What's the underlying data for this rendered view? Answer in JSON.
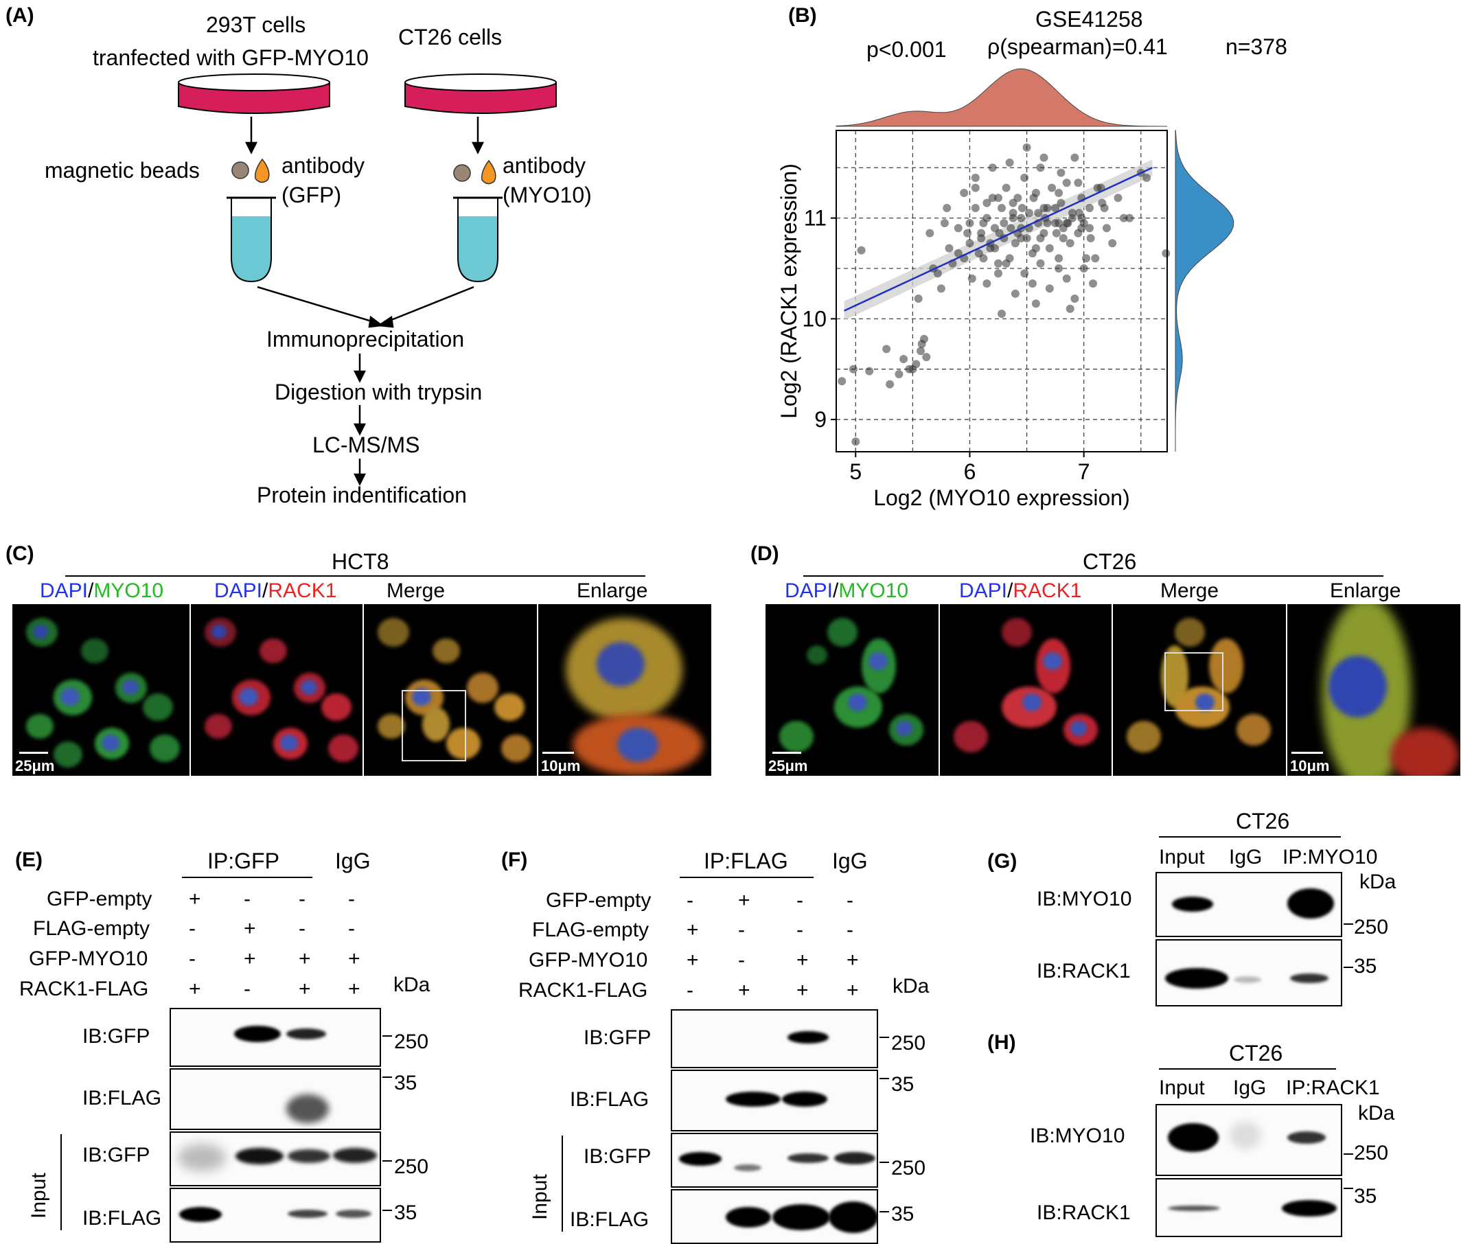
{
  "panelA": {
    "label": "(A)",
    "left_title_1": "293T cells",
    "left_title_2": "tranfected with GFP-MYO10",
    "right_title": "CT26 cells",
    "beads_label": "magnetic beads",
    "antibody_left_1": "antibody",
    "antibody_left_2": "(GFP)",
    "antibody_right_1": "antibody",
    "antibody_right_2": "(MYO10)",
    "steps": [
      "Immunoprecipitation",
      "Digestion with trypsin",
      "LC-MS/MS",
      "Protein indentification"
    ]
  },
  "panelB": {
    "label": "(B)",
    "dataset": "GSE41258",
    "pvalue": "p<0.001",
    "rho": "ρ(spearman)=0.41",
    "n": "n=378",
    "top_density_color": "#D4796A",
    "right_density_color": "#3A8FC6",
    "line_color": "#1f2fbf"
  },
  "chart_data": {
    "type": "scatter",
    "title": "GSE41258",
    "xlabel": "Log2 (MYO10 expression)",
    "ylabel": "Log2 (RACK1 expression)",
    "xlim": [
      4.83,
      7.73
    ],
    "ylim": [
      8.68,
      11.87
    ],
    "xticks": [
      "5",
      "6",
      "7"
    ],
    "yticks": [
      "9",
      "10",
      "11"
    ],
    "grid": true,
    "regression": {
      "x0": 4.9,
      "y0": 10.08,
      "x1": 7.6,
      "y1": 11.5
    },
    "series": [
      {
        "x": [
          4.88,
          4.98,
          5.0,
          5.12,
          5.27,
          5.3,
          5.38,
          5.42,
          5.47,
          5.5,
          5.53,
          5.57,
          5.6,
          5.62,
          5.58,
          5.05,
          5.68,
          5.75,
          5.82,
          5.9,
          5.95,
          6.0,
          6.05,
          6.1,
          6.12,
          6.15,
          6.18,
          6.2,
          6.22,
          6.25,
          6.28,
          6.3,
          6.32,
          6.35,
          6.38,
          6.4,
          6.42,
          6.45,
          6.48,
          6.5,
          6.52,
          6.55,
          6.58,
          6.6,
          6.62,
          6.65,
          6.68,
          6.7,
          6.72,
          6.75,
          6.78,
          6.8,
          6.82,
          6.85,
          6.88,
          6.9,
          6.92,
          6.95,
          6.98,
          7.0,
          7.05,
          7.1,
          7.15,
          7.2,
          7.3,
          7.4,
          7.55,
          7.72,
          5.55,
          5.72,
          5.85,
          6.02,
          6.08,
          6.15,
          6.25,
          6.32,
          6.4,
          6.48,
          6.55,
          6.62,
          6.7,
          6.78,
          6.85,
          6.92,
          7.0,
          7.08,
          5.8,
          5.95,
          6.05,
          6.2,
          6.35,
          6.5,
          6.65,
          6.8,
          6.95,
          7.12,
          5.65,
          6.28,
          6.58,
          6.88,
          7.25,
          6.1,
          6.3,
          6.45,
          6.6,
          6.75,
          6.9,
          7.05,
          6.15,
          6.38,
          6.52,
          6.68,
          6.82,
          6.98,
          6.22,
          6.42,
          6.62,
          6.78,
          5.9,
          6.0,
          6.12,
          6.26,
          6.36,
          6.46,
          6.56,
          6.66,
          6.76,
          6.86,
          6.96,
          7.06,
          7.16,
          7.35,
          7.5,
          5.78,
          5.98,
          6.18,
          6.38,
          6.58,
          6.78,
          6.98,
          7.18,
          6.05,
          6.25,
          6.45,
          6.65,
          6.85,
          7.02
        ],
        "y": [
          9.38,
          9.5,
          8.78,
          9.48,
          9.7,
          9.35,
          9.45,
          9.6,
          9.5,
          9.5,
          9.55,
          9.68,
          9.8,
          9.62,
          9.75,
          10.68,
          10.5,
          10.3,
          10.7,
          10.9,
          10.6,
          10.95,
          11.1,
          10.8,
          10.6,
          11.0,
          10.7,
          11.2,
          10.9,
          10.55,
          11.1,
          10.8,
          11.3,
          10.6,
          11.0,
          10.75,
          11.2,
          10.9,
          11.4,
          10.8,
          11.05,
          10.65,
          11.25,
          10.95,
          11.5,
          10.85,
          11.1,
          10.7,
          11.3,
          10.95,
          10.6,
          11.15,
          10.9,
          11.35,
          10.75,
          11.05,
          11.6,
          10.85,
          11.2,
          10.95,
          11.1,
          10.6,
          11.3,
          10.9,
          11.2,
          11.0,
          11.4,
          10.65,
          10.2,
          10.45,
          10.55,
          10.4,
          10.65,
          10.35,
          10.45,
          10.55,
          10.25,
          10.45,
          10.35,
          10.55,
          10.3,
          10.5,
          10.4,
          10.2,
          10.5,
          10.35,
          11.1,
          11.25,
          11.4,
          11.5,
          11.55,
          11.7,
          11.6,
          11.45,
          11.35,
          11.3,
          10.85,
          10.05,
          10.15,
          10.1,
          10.75,
          10.85,
          10.95,
          11.0,
          11.05,
          11.1,
          11.0,
          10.9,
          11.15,
          11.05,
          10.9,
          10.95,
          10.8,
          11.0,
          10.7,
          10.85,
          10.8,
          10.95,
          10.65,
          10.75,
          10.95,
          10.85,
          10.9,
          11.1,
          11.2,
          11.0,
          10.85,
          10.95,
          11.05,
          10.8,
          11.15,
          11.0,
          11.45,
          10.95,
          10.85,
          10.75,
          11.15,
          10.7,
          11.25,
          10.9,
          11.1,
          11.3,
          11.2,
          10.8,
          11.1,
          10.95,
          10.6
        ]
      }
    ]
  },
  "panelC": {
    "label": "(C)",
    "cell_line": "HCT8",
    "col1_a": "DAPI",
    "col1_b": "/",
    "col1_c": "MYO10",
    "col2_a": "DAPI",
    "col2_b": "/",
    "col2_c": "RACK1",
    "col3": "Merge",
    "col4": "Enlarge",
    "scale1": "25μm",
    "scale2": "10μm"
  },
  "panelD": {
    "label": "(D)",
    "cell_line": "CT26",
    "col1_a": "DAPI",
    "col1_b": "/",
    "col1_c": "MYO10",
    "col2_a": "DAPI",
    "col2_b": "/",
    "col2_c": "RACK1",
    "col3": "Merge",
    "col4": "Enlarge",
    "scale1": "25μm",
    "scale2": "10μm"
  },
  "panelE": {
    "label": "(E)",
    "ip": "IP:GFP",
    "igg": "IgG",
    "rows": [
      {
        "name": "GFP-empty",
        "signs": [
          "+",
          "-",
          "-",
          "-"
        ]
      },
      {
        "name": "FLAG-empty",
        "signs": [
          "-",
          "+",
          "-",
          "-"
        ]
      },
      {
        "name": "GFP-MYO10",
        "signs": [
          "-",
          "+",
          "+",
          "+"
        ]
      },
      {
        "name": "RACK1-FLAG",
        "signs": [
          "+",
          "-",
          "+",
          "+"
        ]
      }
    ],
    "kda": "kDa",
    "blots": [
      "IB:GFP",
      "IB:FLAG",
      "IB:GFP",
      "IB:FLAG"
    ],
    "input": "Input",
    "markers": [
      "250",
      "35",
      "250",
      "35"
    ]
  },
  "panelF": {
    "label": "(F)",
    "ip": "IP:FLAG",
    "igg": "IgG",
    "rows": [
      {
        "name": "GFP-empty",
        "signs": [
          "-",
          "+",
          "-",
          "-"
        ]
      },
      {
        "name": "FLAG-empty",
        "signs": [
          "+",
          "-",
          "-",
          "-"
        ]
      },
      {
        "name": "GFP-MYO10",
        "signs": [
          "+",
          "-",
          "+",
          "+"
        ]
      },
      {
        "name": "RACK1-FLAG",
        "signs": [
          "-",
          "+",
          "+",
          "+"
        ]
      }
    ],
    "kda": "kDa",
    "blots": [
      "IB:GFP",
      "IB:FLAG",
      "IB:GFP",
      "IB:FLAG"
    ],
    "input": "Input",
    "markers": [
      "250",
      "35",
      "250",
      "35"
    ]
  },
  "panelG": {
    "label": "(G)",
    "cell_line": "CT26",
    "lanes": [
      "Input",
      "IgG",
      "IP:MYO10"
    ],
    "kda": "kDa",
    "blots": [
      "IB:MYO10",
      "IB:RACK1"
    ],
    "markers": [
      "250",
      "35"
    ]
  },
  "panelH": {
    "label": "(H)",
    "cell_line": "CT26",
    "lanes": [
      "Input",
      "IgG",
      "IP:RACK1"
    ],
    "kda": "kDa",
    "blots": [
      "IB:MYO10",
      "IB:RACK1"
    ],
    "markers": [
      "250",
      "35"
    ]
  }
}
